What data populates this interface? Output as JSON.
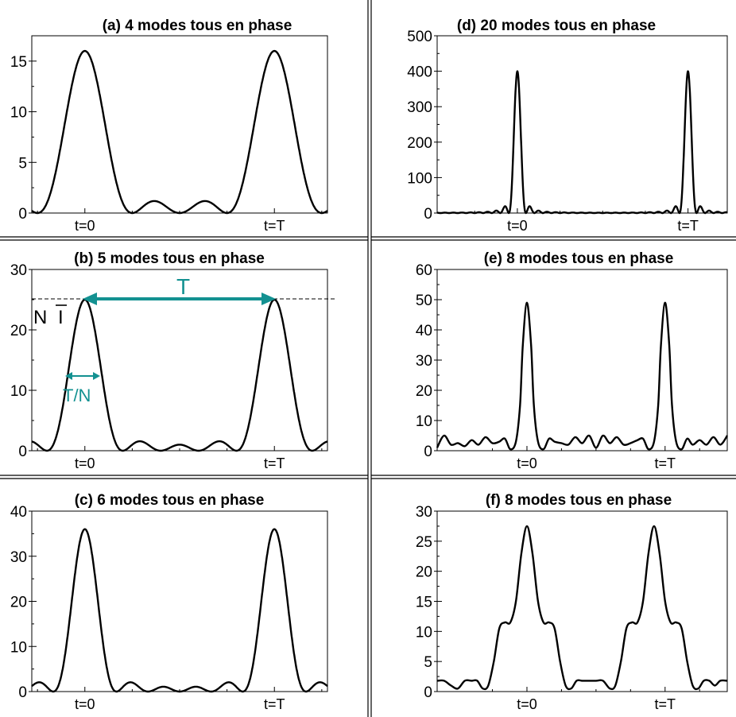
{
  "colors": {
    "curve": "#000000",
    "accent": "#139191",
    "reference_line": "#000000"
  },
  "chart_data": [
    {
      "id": "a",
      "type": "line",
      "modes": 4,
      "model": "N modes in phase: I(t) = sin^2(N*pi*t/T) / sin^2(pi*t/T)",
      "title": "(a) 4 modes tous en phase",
      "yticks": [
        0,
        5,
        10,
        15
      ],
      "ylim": [
        0,
        17.5
      ],
      "xlim": [
        -0.28,
        1.28
      ],
      "xtick_labels": [
        {
          "x": 0,
          "label": "t=0"
        },
        {
          "x": 1,
          "label": "t=T"
        }
      ],
      "peak_value": 16,
      "grid": false
    },
    {
      "id": "b",
      "type": "line",
      "modes": 5,
      "model": "N modes in phase: I(t) = sin^2(N*pi*t/T) / sin^2(pi*t/T)",
      "title": "(b) 5 modes tous en phase",
      "yticks": [
        0,
        10,
        20,
        30
      ],
      "ylim": [
        0,
        30
      ],
      "xlim": [
        -0.28,
        1.28
      ],
      "xtick_labels": [
        {
          "x": 0,
          "label": "t=0"
        },
        {
          "x": 1,
          "label": "t=T"
        }
      ],
      "peak_value": 25,
      "grid": false,
      "annotations": {
        "period": "T",
        "width": "T/N",
        "peak": "N",
        "peak_symbol": "I"
      }
    },
    {
      "id": "c",
      "type": "line",
      "modes": 6,
      "model": "N modes in phase: I(t) = sin^2(N*pi*t/T) / sin^2(pi*t/T)",
      "title": "(c) 6 modes tous en phase",
      "yticks": [
        0,
        10,
        20,
        30,
        40
      ],
      "ylim": [
        0,
        40
      ],
      "xlim": [
        -0.28,
        1.28
      ],
      "xtick_labels": [
        {
          "x": 0,
          "label": "t=0"
        },
        {
          "x": 1,
          "label": "t=T"
        }
      ],
      "peak_value": 36,
      "grid": false
    },
    {
      "id": "d",
      "type": "line",
      "modes": 20,
      "model": "N modes in phase: I(t) = sin^2(N*pi*t/T) / sin^2(pi*t/T)",
      "title": "(d) 20 modes tous en phase",
      "yticks": [
        0,
        100,
        200,
        300,
        400,
        500
      ],
      "ylim": [
        0,
        500
      ],
      "xlim": [
        -0.47,
        1.23
      ],
      "xtick_labels": [
        {
          "x": 0,
          "label": "t=0"
        },
        {
          "x": 1,
          "label": "t=T"
        }
      ],
      "peak_value": 400,
      "grid": false
    },
    {
      "id": "e",
      "type": "line",
      "modes": 8,
      "model": "8 modes, non-uniform phases",
      "title": "(e) 8 modes tous en phase",
      "yticks": [
        0,
        10,
        20,
        30,
        40,
        50,
        60
      ],
      "ylim": [
        0,
        60
      ],
      "xlim": [
        -0.65,
        1.45
      ],
      "xtick_labels": [
        {
          "x": 0,
          "label": "t=0"
        },
        {
          "x": 1,
          "label": "t=T"
        }
      ],
      "x": [
        -0.65,
        -0.6,
        -0.55,
        -0.5,
        -0.45,
        -0.4,
        -0.35,
        -0.3,
        -0.25,
        -0.2,
        -0.16,
        -0.12,
        -0.08,
        -0.05,
        -0.03,
        0,
        0.03,
        0.05,
        0.08,
        0.12,
        0.16,
        0.2,
        0.25,
        0.3,
        0.35,
        0.4,
        0.45,
        0.5,
        0.55,
        0.6,
        0.65,
        0.7,
        0.75,
        0.8,
        0.84,
        0.88,
        0.92,
        0.95,
        0.97,
        1.0,
        1.03,
        1.05,
        1.08,
        1.12,
        1.16,
        1.2,
        1.25,
        1.3,
        1.35,
        1.4,
        1.45
      ],
      "y": [
        1,
        5,
        2,
        2.5,
        1.5,
        3.5,
        2,
        4.5,
        2.5,
        3,
        4,
        0.5,
        3,
        15,
        35,
        49,
        35,
        15,
        3,
        0.5,
        4,
        3,
        2.5,
        2,
        4.5,
        2.5,
        5,
        1,
        5,
        2.5,
        4.5,
        2,
        2.5,
        3.5,
        4,
        0.5,
        3,
        15,
        35,
        49,
        35,
        15,
        3,
        0.5,
        4,
        2,
        3.5,
        2,
        4.5,
        2,
        5
      ],
      "grid": false
    },
    {
      "id": "f",
      "type": "line",
      "modes": 8,
      "model": "8 modes, non-uniform phases",
      "title": "(f) 8 modes tous en phase",
      "yticks": [
        0,
        5,
        10,
        15,
        20,
        25,
        30
      ],
      "ylim": [
        0,
        30
      ],
      "xlim": [
        -0.65,
        1.45
      ],
      "xtick_labels": [
        {
          "x": 0,
          "label": "t=0"
        },
        {
          "x": 1,
          "label": "t=T"
        }
      ],
      "x": [
        -0.65,
        -0.6,
        -0.55,
        -0.5,
        -0.45,
        -0.4,
        -0.36,
        -0.32,
        -0.28,
        -0.24,
        -0.2,
        -0.16,
        -0.12,
        -0.08,
        -0.04,
        0,
        0.04,
        0.08,
        0.12,
        0.16,
        0.2,
        0.24,
        0.28,
        0.32,
        0.36,
        0.4,
        0.45,
        0.5,
        0.55,
        0.6,
        0.64,
        0.68,
        0.72,
        0.76,
        0.8,
        0.84,
        0.88,
        0.92,
        0.96,
        1.0,
        1.04,
        1.08,
        1.12,
        1.16,
        1.2,
        1.24,
        1.28,
        1.32,
        1.36,
        1.4,
        1.45
      ],
      "y": [
        1.8,
        1.8,
        1,
        0.5,
        1.8,
        1.8,
        1.8,
        0.5,
        1,
        5,
        10.5,
        11.5,
        11.5,
        15,
        23,
        27.5,
        23,
        15,
        11.5,
        11.5,
        10.5,
        5,
        1,
        0.5,
        1.8,
        1.8,
        1.8,
        1.8,
        1.8,
        0.5,
        1,
        5,
        10.5,
        11.5,
        11.5,
        15,
        23,
        27.5,
        23,
        15,
        11.5,
        11.5,
        10.5,
        5,
        1,
        0.5,
        1.8,
        1.8,
        1,
        1.8,
        1.8
      ],
      "grid": false
    }
  ]
}
